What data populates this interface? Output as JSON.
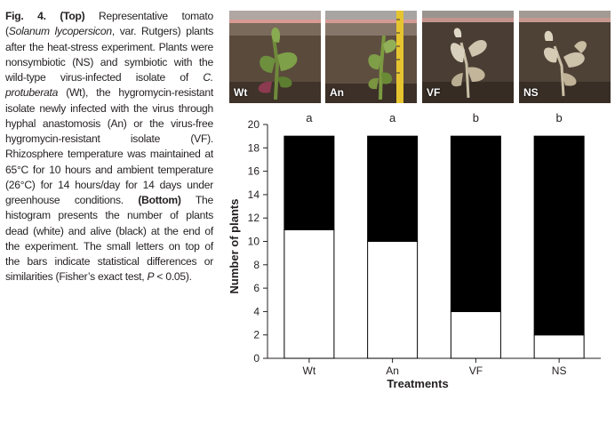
{
  "caption": {
    "fig_label": "Fig. 4.",
    "top_label": "(Top)",
    "bottom_label": "(Bottom)",
    "part1": " Representative tomato (",
    "species": "Solanum lycopersicon",
    "part2": ", var. Rutgers) plants after the heat-stress experiment. Plants were nonsymbiotic (NS) and symbiotic with the wild-type virus-infected isolate of ",
    "organism": "C. protuberata",
    "part3": " (Wt), the hygromycin-resistant isolate newly infected with the virus through hyphal anastomosis (An) or the virus-free hygromycin-resistant isolate (VF). Rhizosphere temperature was maintained at 65°C for 10 hours and ambient temperature (26°C) for 14 hours/day for 14 days under greenhouse conditions. ",
    "part4": " The histogram presents the number of plants dead (white) and alive (black) at the end of the experiment. The small letters on top of the bars indicate statistical differences or similarities (Fisher’s exact test, ",
    "p_symbol": "P",
    "part5": " < 0.05)."
  },
  "photos": [
    {
      "label": "Wt",
      "state": "alive"
    },
    {
      "label": "An",
      "state": "alive"
    },
    {
      "label": "VF",
      "state": "dead"
    },
    {
      "label": "NS",
      "state": "dead"
    }
  ],
  "chart_data": {
    "type": "bar",
    "stacked": true,
    "categories": [
      "Wt",
      "An",
      "VF",
      "NS"
    ],
    "series": [
      {
        "name": "dead",
        "values": [
          11,
          10,
          4,
          2
        ],
        "color": "#ffffff"
      },
      {
        "name": "alive",
        "values": [
          8,
          9,
          15,
          17
        ],
        "color": "#000000"
      }
    ],
    "letters": [
      "a",
      "a",
      "b",
      "b"
    ],
    "xlabel": "Treatments",
    "ylabel": "Number of plants",
    "ylim": [
      0,
      20
    ],
    "yticks": [
      0,
      2,
      4,
      6,
      8,
      10,
      12,
      14,
      16,
      18,
      20
    ],
    "grid": false
  }
}
